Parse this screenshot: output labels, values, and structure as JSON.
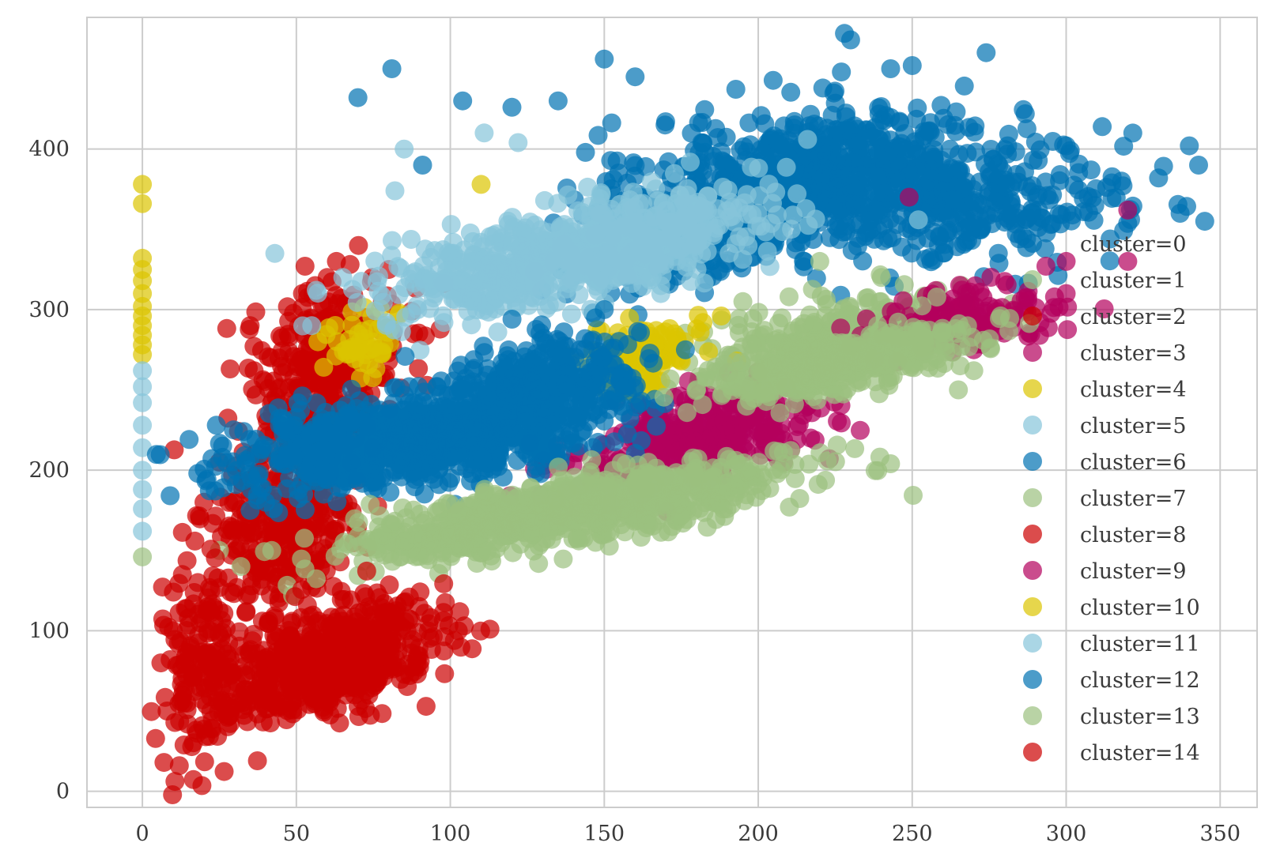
{
  "chart_data": {
    "type": "scatter",
    "title": "",
    "xlabel": "",
    "ylabel": "",
    "xlim": [
      -18,
      362
    ],
    "ylim": [
      -10,
      482
    ],
    "xticks": [
      0,
      50,
      100,
      150,
      200,
      250,
      300,
      350
    ],
    "yticks": [
      0,
      100,
      200,
      300,
      400
    ],
    "grid": true,
    "legend_position": "right",
    "marker_alpha": 0.7,
    "series": [
      {
        "name": "cluster=0",
        "color": "#0072b2",
        "clusters": [
          {
            "cx": 225,
            "cy": 385,
            "sx": 30,
            "sy": 20,
            "r": 0.15,
            "n": 700
          },
          {
            "cx": 185,
            "cy": 350,
            "sx": 25,
            "sy": 18,
            "r": 0.4,
            "n": 250
          },
          {
            "cx": 275,
            "cy": 360,
            "sx": 22,
            "sy": 18,
            "r": 0.3,
            "n": 200
          }
        ],
        "points": [
          [
            228,
            472
          ],
          [
            230,
            468
          ],
          [
            274,
            460
          ],
          [
            150,
            456
          ],
          [
            81,
            450
          ],
          [
            250,
            452
          ],
          [
            243,
            450
          ],
          [
            227,
            448
          ],
          [
            70,
            432
          ],
          [
            104,
            430
          ],
          [
            120,
            426
          ],
          [
            135,
            430
          ],
          [
            160,
            445
          ],
          [
            340,
            402
          ],
          [
            343,
            390
          ],
          [
            300,
            402
          ],
          [
            318,
            380
          ],
          [
            330,
            382
          ],
          [
            337,
            360
          ],
          [
            345,
            355
          ],
          [
            281,
            402
          ],
          [
            91,
            390
          ]
        ]
      },
      {
        "name": "cluster=1",
        "color": "#9bc17f",
        "clusters": [
          {
            "cx": 225,
            "cy": 285,
            "sx": 22,
            "sy": 12,
            "r": 0.6,
            "n": 220
          }
        ],
        "points": [
          [
            195,
            305
          ],
          [
            220,
            330
          ],
          [
            240,
            320
          ],
          [
            266,
            315
          ],
          [
            255,
            300
          ],
          [
            210,
            308
          ],
          [
            0,
            146
          ]
        ]
      },
      {
        "name": "cluster=2",
        "color": "#cc0000",
        "clusters": [
          {
            "cx": 60,
            "cy": 260,
            "sx": 12,
            "sy": 28,
            "r": 0.2,
            "n": 350
          },
          {
            "cx": 45,
            "cy": 160,
            "sx": 12,
            "sy": 25,
            "r": 0.1,
            "n": 250
          }
        ],
        "points": [
          [
            52,
            310
          ],
          [
            63,
            330
          ],
          [
            60,
            320
          ],
          [
            80,
            325
          ],
          [
            25,
            205
          ],
          [
            20,
            180
          ],
          [
            35,
            290
          ]
        ]
      },
      {
        "name": "cluster=3",
        "color": "#b3005d",
        "clusters": [
          {
            "cx": 180,
            "cy": 220,
            "sx": 20,
            "sy": 15,
            "r": 0.5,
            "n": 350
          },
          {
            "cx": 265,
            "cy": 295,
            "sx": 15,
            "sy": 10,
            "r": 0.3,
            "n": 150
          }
        ],
        "points": [
          [
            216,
            240
          ],
          [
            217,
            220
          ],
          [
            200,
            230
          ],
          [
            185,
            200
          ],
          [
            270,
            275
          ],
          [
            300,
            330
          ],
          [
            320,
            330
          ],
          [
            300,
            310
          ],
          [
            249,
            370
          ],
          [
            320,
            362
          ]
        ]
      },
      {
        "name": "cluster=4",
        "color": "#dcc400",
        "clusters": [
          {
            "cx": 163,
            "cy": 272,
            "sx": 8,
            "sy": 10,
            "r": 0.2,
            "n": 120
          },
          {
            "cx": 72,
            "cy": 280,
            "sx": 6,
            "sy": 10,
            "r": 0,
            "n": 50
          }
        ],
        "points": [
          [
            110,
            378
          ],
          [
            0,
            378
          ],
          [
            0,
            366
          ],
          [
            0,
            332
          ],
          [
            0,
            325
          ],
          [
            0,
            318
          ],
          [
            0,
            310
          ],
          [
            0,
            302
          ],
          [
            0,
            296
          ],
          [
            0,
            290
          ],
          [
            0,
            284
          ],
          [
            0,
            278
          ],
          [
            0,
            272
          ],
          [
            180,
            288
          ],
          [
            193,
            268
          ],
          [
            188,
            296
          ],
          [
            175,
            268
          ],
          [
            165,
            250
          ],
          [
            57,
            280
          ],
          [
            155,
            248
          ]
        ]
      },
      {
        "name": "cluster=5",
        "color": "#86c5da",
        "clusters": [
          {
            "cx": 140,
            "cy": 335,
            "sx": 30,
            "sy": 18,
            "r": 0.6,
            "n": 700
          }
        ],
        "points": [
          [
            0,
            262
          ],
          [
            0,
            252
          ],
          [
            0,
            242
          ],
          [
            0,
            228
          ],
          [
            0,
            214
          ],
          [
            0,
            200
          ],
          [
            0,
            188
          ],
          [
            0,
            176
          ],
          [
            0,
            162
          ],
          [
            85,
            400
          ],
          [
            82,
            374
          ],
          [
            43,
            335
          ],
          [
            111,
            410
          ],
          [
            122,
            404
          ],
          [
            216,
            406
          ],
          [
            55,
            290
          ]
        ]
      },
      {
        "name": "cluster=6",
        "color": "#0072b2",
        "clusters": [
          {
            "cx": 90,
            "cy": 220,
            "sx": 30,
            "sy": 15,
            "r": 0.5,
            "n": 900
          },
          {
            "cx": 130,
            "cy": 255,
            "sx": 15,
            "sy": 15,
            "r": 0.4,
            "n": 300
          }
        ],
        "points": [
          [
            24,
            228
          ],
          [
            18,
            198
          ],
          [
            26,
            208
          ],
          [
            35,
            175
          ],
          [
            40,
            180
          ],
          [
            145,
            250
          ],
          [
            150,
            300
          ]
        ]
      },
      {
        "name": "cluster=7",
        "color": "#9bc17f",
        "clusters": [
          {
            "cx": 140,
            "cy": 175,
            "sx": 35,
            "sy": 15,
            "r": 0.75,
            "n": 800
          },
          {
            "cx": 225,
            "cy": 265,
            "sx": 22,
            "sy": 12,
            "r": 0.7,
            "n": 400
          }
        ],
        "points": [
          [
            25,
            150
          ],
          [
            32,
            140
          ],
          [
            42,
            150
          ],
          [
            265,
            250
          ],
          [
            270,
            262
          ]
        ]
      },
      {
        "name": "cluster=8",
        "color": "#cc0000",
        "clusters": [
          {
            "cx": 60,
            "cy": 80,
            "sx": 18,
            "sy": 18,
            "r": 0.5,
            "n": 600
          },
          {
            "cx": 20,
            "cy": 80,
            "sx": 7,
            "sy": 30,
            "r": 0,
            "n": 150
          }
        ],
        "points": [
          [
            6,
            80
          ],
          [
            8,
            50
          ],
          [
            12,
            16
          ],
          [
            7,
            18
          ],
          [
            10,
            100
          ],
          [
            13,
            135
          ],
          [
            18,
            130
          ]
        ]
      },
      {
        "name": "cluster=9",
        "color": "#b3005d",
        "clusters": [],
        "points": []
      },
      {
        "name": "cluster=10",
        "color": "#dcc400",
        "clusters": [],
        "points": []
      },
      {
        "name": "cluster=11",
        "color": "#86c5da",
        "clusters": [],
        "points": []
      },
      {
        "name": "cluster=12",
        "color": "#0072b2",
        "clusters": [],
        "points": []
      },
      {
        "name": "cluster=13",
        "color": "#9bc17f",
        "clusters": [],
        "points": []
      },
      {
        "name": "cluster=14",
        "color": "#cc0000",
        "clusters": [],
        "points": []
      }
    ]
  }
}
